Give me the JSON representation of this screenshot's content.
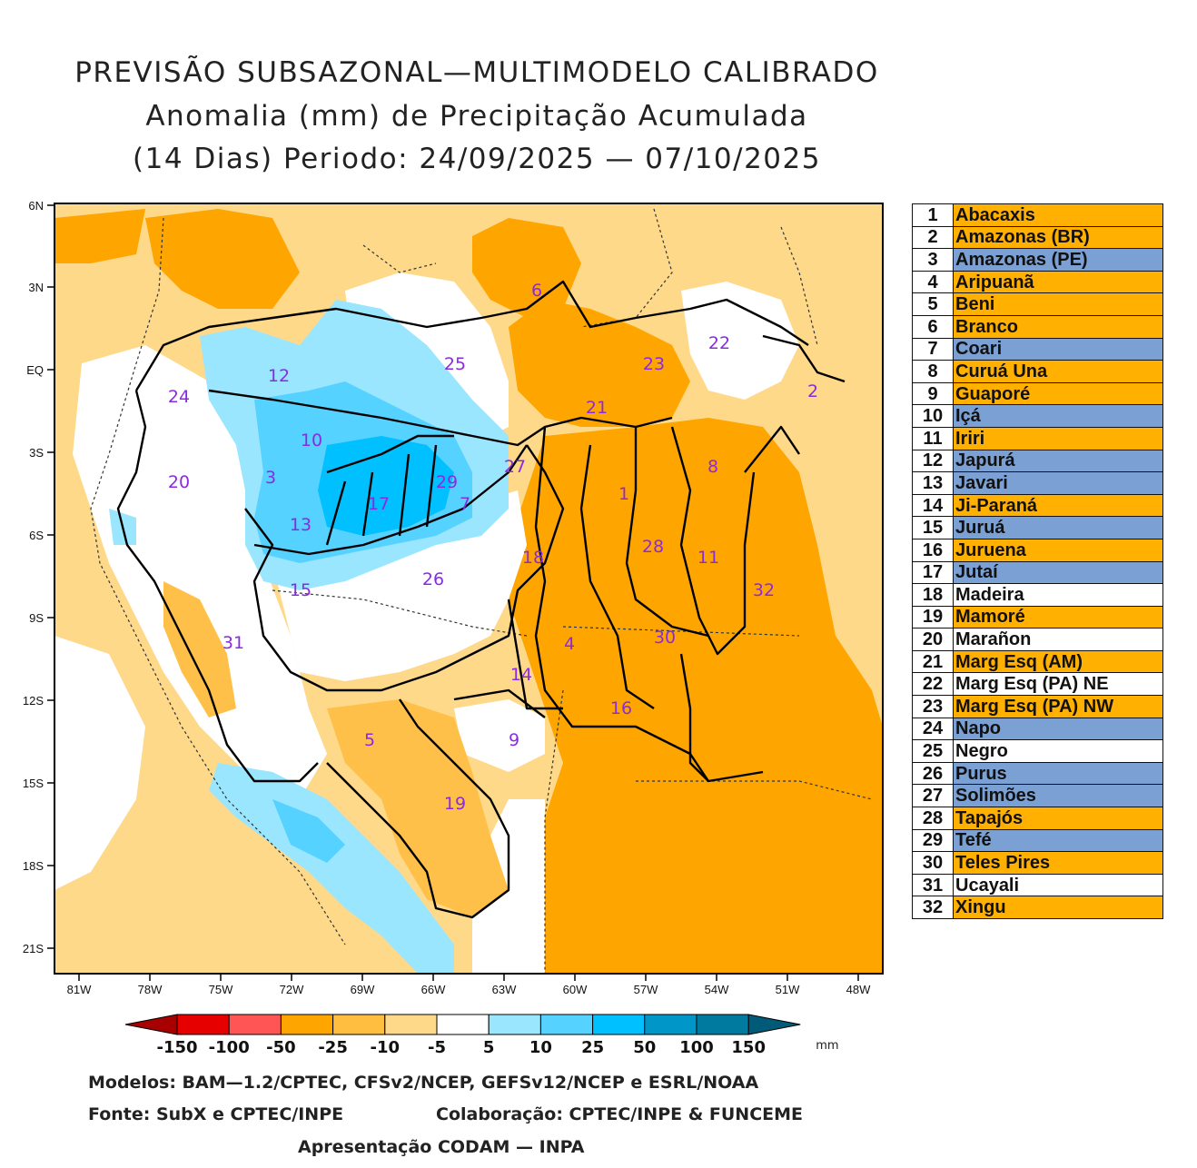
{
  "title": {
    "line1": "PREVISÃO SUBSAZONAL—MULTIMODELO CALIBRADO",
    "line2": "Anomalia (mm) de Precipitação Acumulada",
    "line3": "(14 Dias) Periodo: 24/09/2025 — 07/10/2025"
  },
  "axes": {
    "lat_labels": [
      "6N",
      "3N",
      "EQ",
      "3S",
      "6S",
      "9S",
      "12S",
      "15S",
      "18S",
      "21S"
    ],
    "lon_labels": [
      "81W",
      "78W",
      "75W",
      "72W",
      "69W",
      "66W",
      "63W",
      "60W",
      "57W",
      "54W",
      "51W",
      "48W"
    ]
  },
  "colorbar": {
    "unit": "mm",
    "ticks": [
      "-150",
      "-100",
      "-50",
      "-25",
      "-10",
      "-5",
      "5",
      "10",
      "25",
      "50",
      "100",
      "150"
    ],
    "colors": [
      "#a80000",
      "#e60000",
      "#ff5555",
      "#ffa500",
      "#ffbe40",
      "#ffd98a",
      "#ffffff",
      "#9ae6ff",
      "#55d2ff",
      "#00c0ff",
      "#0096c8",
      "#007a9e",
      "#005a78"
    ]
  },
  "map_fill": {
    "dry_strong": "#ffa500",
    "dry_mod": "#ffc04a",
    "dry_weak": "#ffd98a",
    "wet_weak": "#9ae6ff",
    "wet_mod": "#55d2ff",
    "wet_strong": "#00c0ff"
  },
  "basin_numbers": [
    "1",
    "2",
    "3",
    "4",
    "5",
    "6",
    "7",
    "8",
    "9",
    "10",
    "11",
    "12",
    "13",
    "14",
    "15",
    "16",
    "17",
    "18",
    "19",
    "20",
    "21",
    "22",
    "23",
    "24",
    "25",
    "26",
    "27",
    "28",
    "29",
    "30",
    "31",
    "32"
  ],
  "basins": [
    {
      "num": "1",
      "name": "Abacaxis",
      "color": "#ffb000"
    },
    {
      "num": "2",
      "name": "Amazonas (BR)",
      "color": "#ffb000"
    },
    {
      "num": "3",
      "name": "Amazonas (PE)",
      "color": "#7ba0d4"
    },
    {
      "num": "4",
      "name": "Aripuanã",
      "color": "#ffb000"
    },
    {
      "num": "5",
      "name": "Beni",
      "color": "#ffb000"
    },
    {
      "num": "6",
      "name": "Branco",
      "color": "#ffb000"
    },
    {
      "num": "7",
      "name": "Coari",
      "color": "#7ba0d4"
    },
    {
      "num": "8",
      "name": "Curuá Una",
      "color": "#ffb000"
    },
    {
      "num": "9",
      "name": "Guaporé",
      "color": "#ffb000"
    },
    {
      "num": "10",
      "name": "Içá",
      "color": "#7ba0d4"
    },
    {
      "num": "11",
      "name": "Iriri",
      "color": "#ffb000"
    },
    {
      "num": "12",
      "name": "Japurá",
      "color": "#7ba0d4"
    },
    {
      "num": "13",
      "name": "Javari",
      "color": "#7ba0d4"
    },
    {
      "num": "14",
      "name": "Ji-Paraná",
      "color": "#ffb000"
    },
    {
      "num": "15",
      "name": "Juruá",
      "color": "#7ba0d4"
    },
    {
      "num": "16",
      "name": "Juruena",
      "color": "#ffb000"
    },
    {
      "num": "17",
      "name": "Jutaí",
      "color": "#7ba0d4"
    },
    {
      "num": "18",
      "name": "Madeira",
      "color": "#ffffff"
    },
    {
      "num": "19",
      "name": "Mamoré",
      "color": "#ffb000"
    },
    {
      "num": "20",
      "name": "Marañon",
      "color": "#ffffff"
    },
    {
      "num": "21",
      "name": "Marg Esq (AM)",
      "color": "#ffb000"
    },
    {
      "num": "22",
      "name": "Marg Esq (PA) NE",
      "color": "#ffffff"
    },
    {
      "num": "23",
      "name": "Marg Esq (PA) NW",
      "color": "#ffb000"
    },
    {
      "num": "24",
      "name": "Napo",
      "color": "#7ba0d4"
    },
    {
      "num": "25",
      "name": "Negro",
      "color": "#ffffff"
    },
    {
      "num": "26",
      "name": "Purus",
      "color": "#7ba0d4"
    },
    {
      "num": "27",
      "name": "Solimões",
      "color": "#7ba0d4"
    },
    {
      "num": "28",
      "name": "Tapajós",
      "color": "#ffb000"
    },
    {
      "num": "29",
      "name": "Tefé",
      "color": "#7ba0d4"
    },
    {
      "num": "30",
      "name": "Teles Pires",
      "color": "#ffb000"
    },
    {
      "num": "31",
      "name": "Ucayali",
      "color": "#ffffff"
    },
    {
      "num": "32",
      "name": "Xingu",
      "color": "#ffb000"
    }
  ],
  "footer": {
    "models": "Modelos: BAM—1.2/CPTEC, CFSv2/NCEP, GEFSv12/NCEP e ESRL/NOAA",
    "source": "Fonte: SubX e CPTEC/INPE",
    "collab": "Colaboração: CPTEC/INPE & FUNCEME",
    "presentation": "Apresentação CODAM — INPA"
  }
}
